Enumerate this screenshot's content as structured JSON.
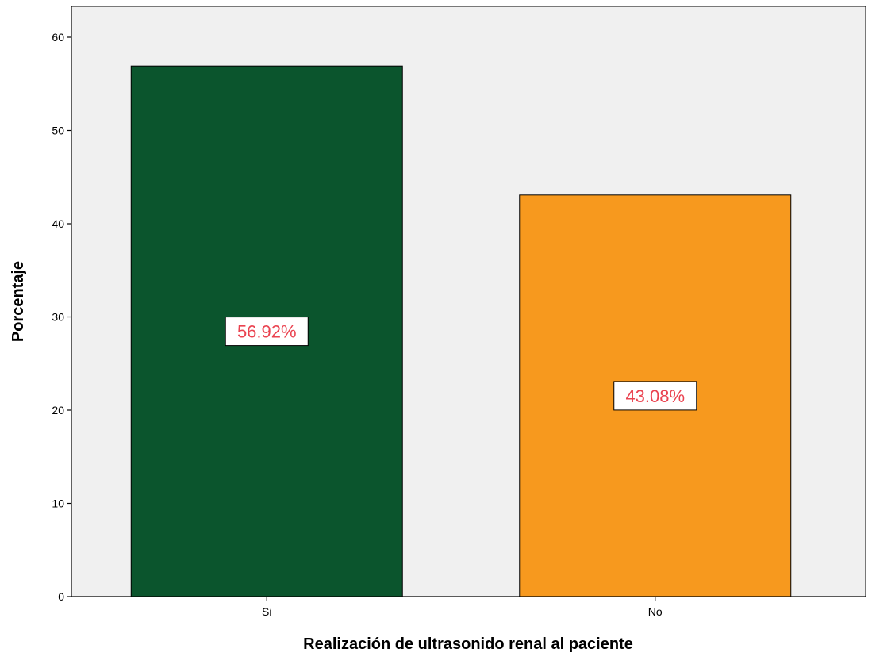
{
  "chart_data": {
    "type": "bar",
    "categories": [
      "Si",
      "No"
    ],
    "values": [
      56.92,
      43.08
    ],
    "data_labels": [
      "56.92%",
      "43.08%"
    ],
    "bar_colors": [
      "#0b552d",
      "#f7991e"
    ],
    "label_color": "#ea4350",
    "plot_background": "#f0f0f0",
    "xlabel": "Realización de ultrasonido renal al paciente",
    "ylabel": "Porcentaje",
    "ylim": [
      0,
      60
    ],
    "yticks": [
      0,
      10,
      20,
      30,
      40,
      50,
      60
    ],
    "grid": false,
    "legend": "none"
  }
}
